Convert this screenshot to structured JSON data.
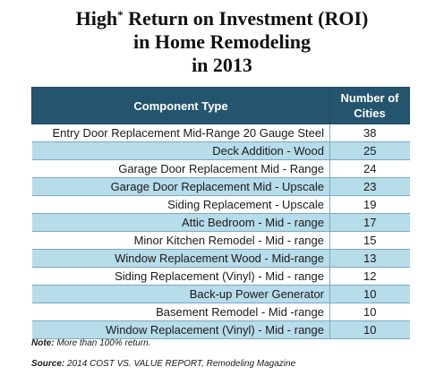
{
  "chart_data": {
    "type": "table",
    "title_line1_main": "High",
    "title_line1_mark": "*",
    "title_line1_rest": " Return on Investment (ROI)",
    "title_line2": "in Home Remodeling",
    "title_line3": "in 2013",
    "columns": [
      "Component Type",
      "Number of Cities"
    ],
    "rows": [
      {
        "component": "Entry Door Replacement Mid-Range 20 Gauge Steel",
        "cities": 38
      },
      {
        "component": "Deck Addition - Wood",
        "cities": 25
      },
      {
        "component": "Garage Door Replacement Mid - Range",
        "cities": 24
      },
      {
        "component": "Garage Door Replacement Mid - Upscale",
        "cities": 23
      },
      {
        "component": "Siding Replacement - Upscale",
        "cities": 19
      },
      {
        "component": "Attic Bedroom - Mid - range",
        "cities": 17
      },
      {
        "component": "Minor Kitchen Remodel - Mid - range",
        "cities": 15
      },
      {
        "component": "Window Replacement Wood - Mid-range",
        "cities": 13
      },
      {
        "component": "Siding Replacement (Vinyl) - Mid - range",
        "cities": 12
      },
      {
        "component": "Back-up Power Generator",
        "cities": 10
      },
      {
        "component": "Basement Remodel - Mid -range",
        "cities": 10
      },
      {
        "component": "Window Replacement (Vinyl) - Mid - range",
        "cities": 10
      }
    ],
    "note_label": "Note:",
    "note_text": "More than 100% return.",
    "source_label": "Source:",
    "source_text": "2014 COST VS. VALUE REPORT, Remodeling Magazine",
    "header_color": "#25556e",
    "stripe_color": "#b7dcea"
  }
}
